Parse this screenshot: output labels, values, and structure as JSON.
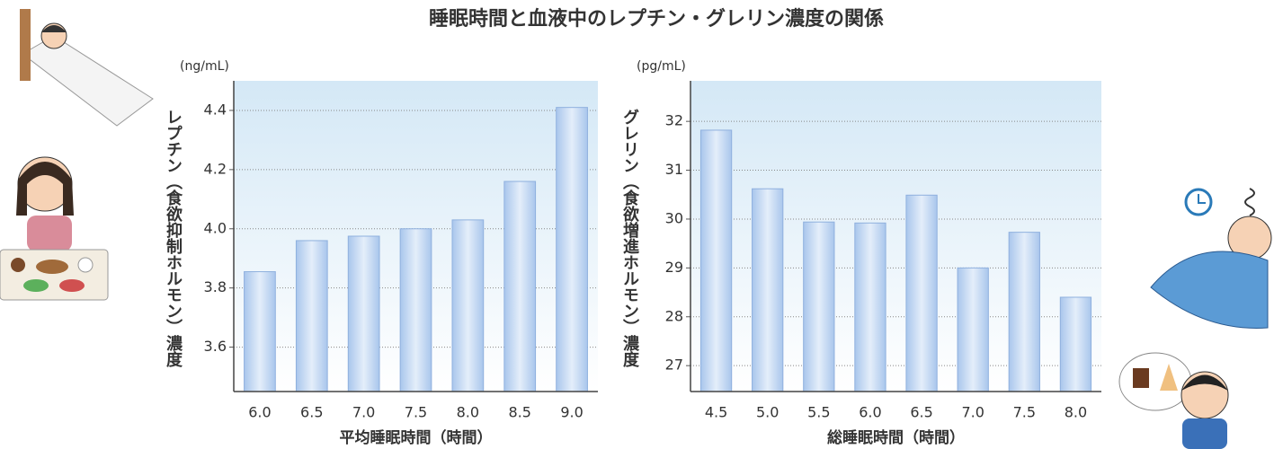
{
  "title": "睡眠時間と血液中のレプチン・グレリン濃度の関係",
  "chart_data": [
    {
      "type": "bar",
      "unit": "(ng/mL)",
      "y_label": "レプチン（食欲抑制ホルモン）濃度",
      "x_label": "平均睡眠時間（時間）",
      "categories": [
        "6.0",
        "6.5",
        "7.0",
        "7.5",
        "8.0",
        "8.5",
        "9.0"
      ],
      "values": [
        3.855,
        3.96,
        3.975,
        4.0,
        4.03,
        4.16,
        4.41
      ],
      "color": "#a9c6ec",
      "ylim": [
        3.45,
        4.5
      ],
      "yticks": [
        3.6,
        3.8,
        {
          "value": 4,
          "label": "4.0"
        },
        4.2,
        4.4
      ],
      "grid": true
    },
    {
      "type": "bar",
      "unit": "(pg/mL)",
      "y_label": "グレリン（食欲増進ホルモン）濃度",
      "x_label": "総睡眠時間（時間）",
      "categories": [
        "4.5",
        "5.0",
        "5.5",
        "6.0",
        "6.5",
        "7.0",
        "7.5",
        "8.0"
      ],
      "values": [
        31.82,
        30.62,
        29.94,
        29.92,
        30.49,
        29.0,
        29.73,
        28.4
      ],
      "color": "#a9c6ec",
      "ylim": [
        26.47,
        32.83
      ],
      "yticks": [
        27,
        28,
        29,
        30,
        31,
        32
      ],
      "grid": true
    }
  ]
}
